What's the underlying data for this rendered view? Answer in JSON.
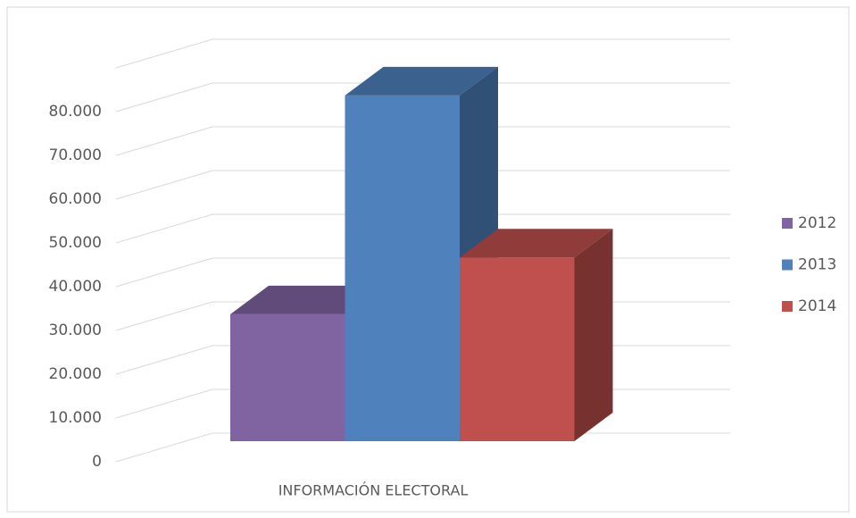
{
  "chart_data": {
    "type": "bar3d",
    "categories": [
      "INFORMACIÓN ELECTORAL"
    ],
    "series": [
      {
        "name": "2012",
        "color": "#8064a2",
        "values": [
          29000
        ]
      },
      {
        "name": "2013",
        "color": "#4f81bd",
        "values": [
          79000
        ]
      },
      {
        "name": "2014",
        "color": "#c0504d",
        "values": [
          42000
        ]
      }
    ],
    "ylim": [
      0,
      90000
    ],
    "yticks": [
      0,
      {
        "value": 10000,
        "label": "10.000"
      },
      {
        "value": 20000,
        "label": "20.000"
      },
      {
        "value": 30000,
        "label": "30.000"
      },
      {
        "value": 40000,
        "label": "40.000"
      },
      {
        "value": 50000,
        "label": "50.000"
      },
      {
        "value": 60000,
        "label": "60.000"
      },
      {
        "value": 70000,
        "label": "70.000"
      },
      {
        "value": 80000,
        "label": "80.000"
      }
    ],
    "grid": true,
    "legend": "right"
  }
}
